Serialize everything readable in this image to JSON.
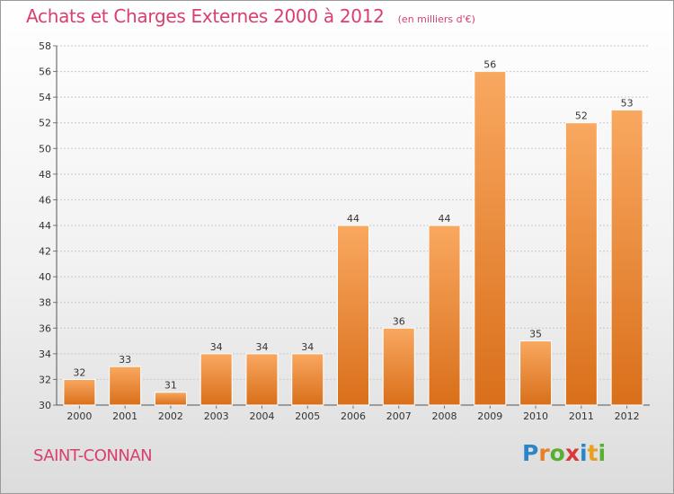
{
  "title": "Achats et Charges Externes 2000 à 2012",
  "unit": "(en milliers d'€)",
  "town": "SAINT-CONNAN",
  "logo": {
    "letters": [
      "P",
      "r",
      "o",
      "x",
      "i",
      "t",
      "i"
    ],
    "colors": [
      "#2a86c8",
      "#e8802a",
      "#58b030",
      "#d83a3a",
      "#2a86c8",
      "#e8a020",
      "#58b030"
    ]
  },
  "colors": {
    "title": "#d8406e",
    "bar_top": "#f9a860",
    "bar_bottom": "#d96f1a",
    "grid": "#c8c8c8"
  },
  "chart_data": {
    "type": "bar",
    "title": "Achats et Charges Externes 2000 à 2012",
    "xlabel": "",
    "ylabel": "",
    "categories": [
      "2000",
      "2001",
      "2002",
      "2003",
      "2004",
      "2005",
      "2006",
      "2007",
      "2008",
      "2009",
      "2010",
      "2011",
      "2012"
    ],
    "values": [
      32,
      33,
      31,
      34,
      34,
      34,
      44,
      36,
      44,
      56,
      35,
      52,
      53
    ],
    "ylim": [
      30,
      58
    ],
    "yticks": [
      30,
      32,
      34,
      36,
      38,
      40,
      42,
      44,
      46,
      48,
      50,
      52,
      54,
      56,
      58
    ],
    "grid": true,
    "data_labels": true
  }
}
